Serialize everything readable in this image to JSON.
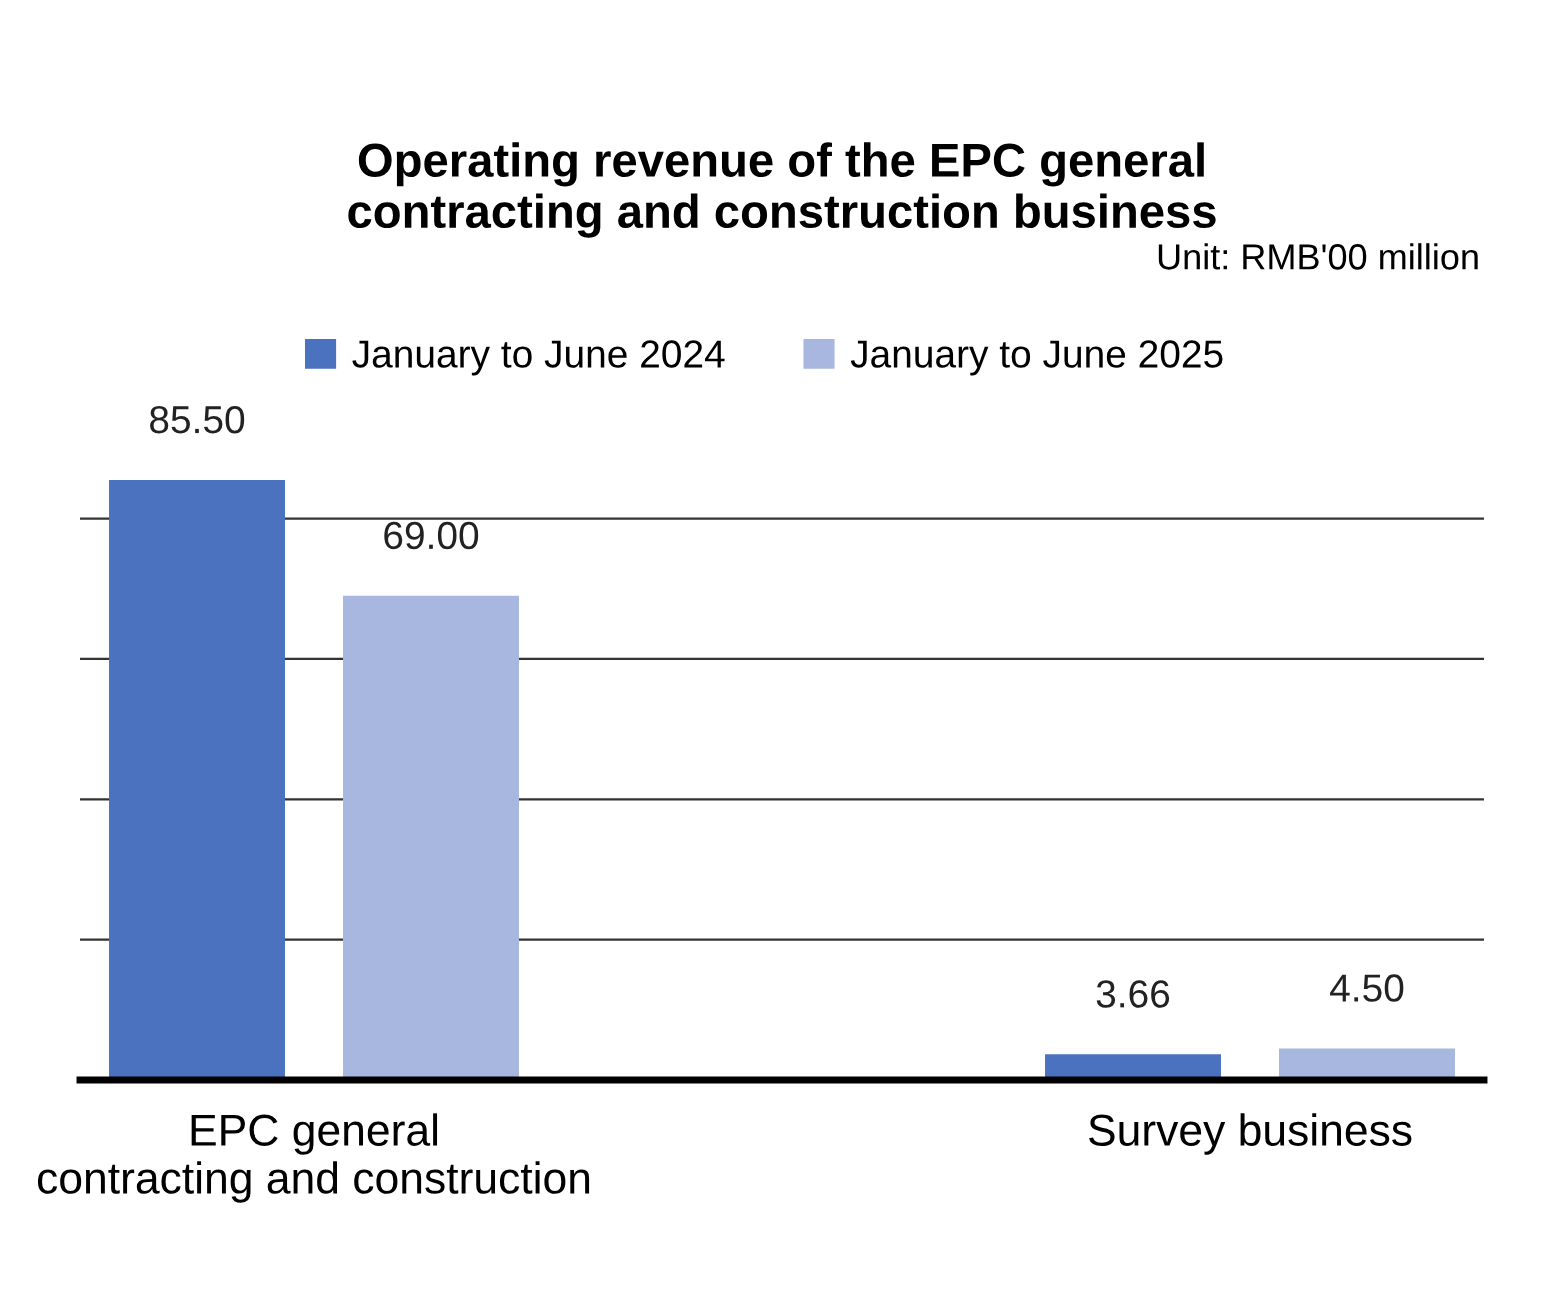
{
  "chart_data": {
    "type": "bar",
    "title": "Operating revenue of the EPC general\ncontracting and construction business",
    "annotations": [
      "Unit: RMB'00 million"
    ],
    "categories": [
      "EPC general\ncontracting and construction",
      "Survey business"
    ],
    "series": [
      {
        "name": "January to June 2024",
        "color": "#4a72bf",
        "values": [
          85.5,
          3.66
        ],
        "value_labels": [
          "85.50",
          "3.66"
        ]
      },
      {
        "name": "January to June 2025",
        "color": "#a8b7e0",
        "values": [
          69.0,
          4.5
        ],
        "value_labels": [
          "69.00",
          "4.50"
        ]
      }
    ],
    "grid": "y",
    "legend": "top left"
  }
}
